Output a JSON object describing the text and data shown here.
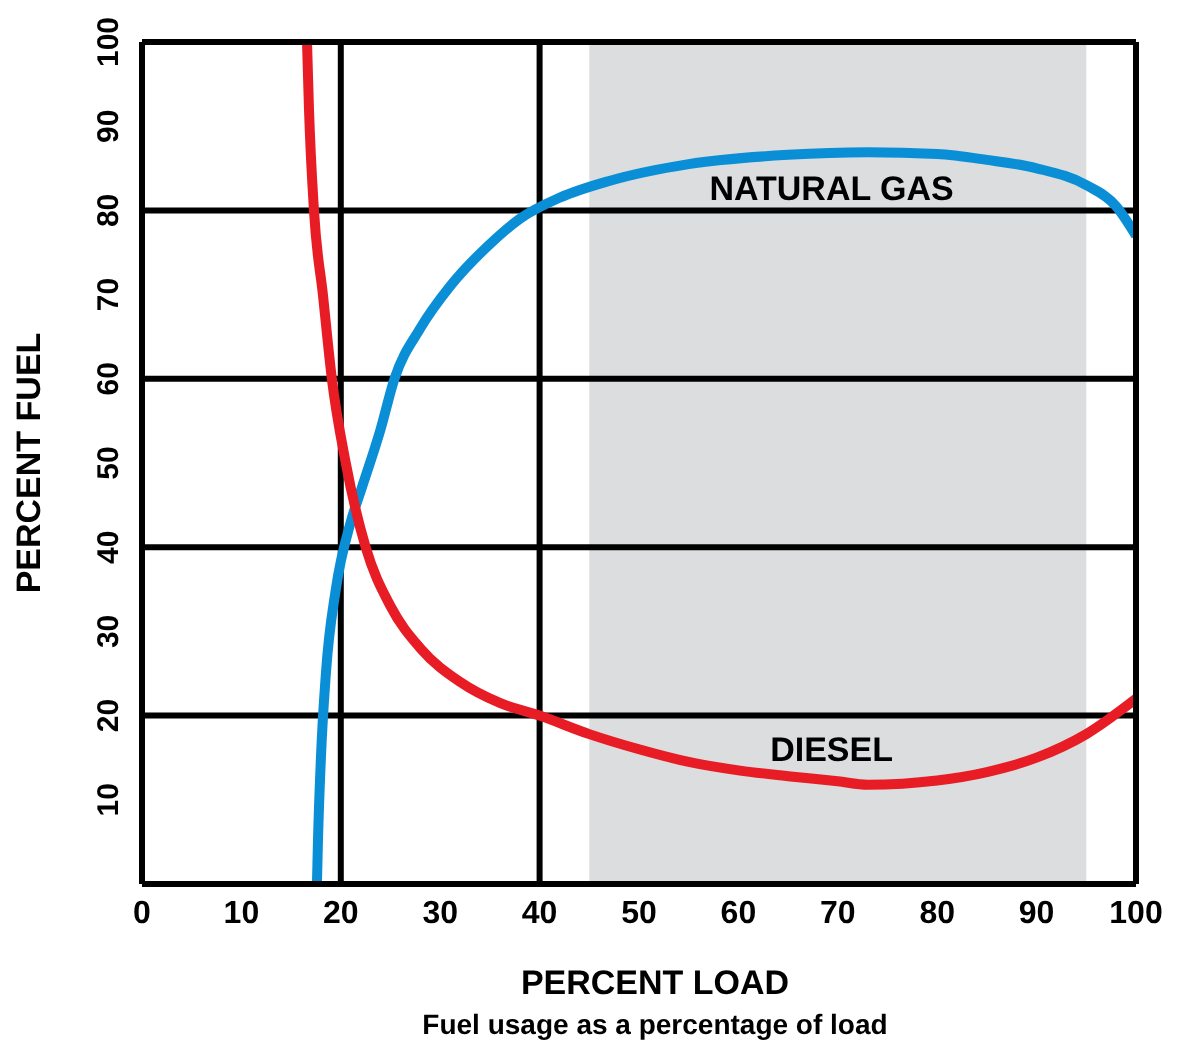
{
  "chart_data": {
    "type": "line",
    "xlabel": "PERCENT LOAD",
    "ylabel": "PERCENT FUEL",
    "annotations": [
      "Fuel usage as a percentage of load"
    ],
    "xlim": [
      0,
      100
    ],
    "xticks": [
      0,
      10,
      20,
      30,
      40,
      50,
      60,
      70,
      80,
      90,
      100
    ],
    "ylim": [
      0,
      100
    ],
    "yticks": [
      10,
      20,
      30,
      40,
      50,
      60,
      70,
      80,
      90,
      100
    ],
    "marker": "none",
    "line_style": "solid",
    "ref_lines": [
      {
        "axis": "x",
        "value": 20,
        "color": "#000000"
      },
      {
        "axis": "x",
        "value": 40,
        "color": "#000000"
      },
      {
        "axis": "y",
        "value": 20,
        "color": "#000000"
      },
      {
        "axis": "y",
        "value": 40,
        "color": "#000000"
      },
      {
        "axis": "y",
        "value": 60,
        "color": "#000000"
      },
      {
        "axis": "y",
        "value": 80,
        "color": "#000000"
      }
    ],
    "bands": [
      {
        "axis": "x",
        "from": 45,
        "to": 95,
        "color": "#dcdddf"
      }
    ],
    "series": [
      {
        "name": "NATURAL GAS",
        "color": "#0a8fd6",
        "x": [
          17.6,
          17.7,
          18,
          18.5,
          19.5,
          21,
          22.1,
          24,
          25.4,
          28,
          31,
          35,
          38,
          42,
          47,
          55,
          65,
          73,
          80,
          85,
          90,
          95,
          98,
          100
        ],
        "values": [
          0,
          5,
          15,
          25,
          35,
          43,
          47,
          54,
          60,
          66,
          71,
          76,
          79,
          81.5,
          83.5,
          85.5,
          86.6,
          86.9,
          86.7,
          86,
          85,
          83,
          80.5,
          77
        ]
      },
      {
        "name": "DIESEL",
        "color": "#e81c24",
        "x": [
          16.6,
          16.8,
          17.3,
          18.2,
          19.1,
          20.5,
          22.5,
          25,
          28,
          32,
          36,
          40,
          45,
          50,
          55,
          60,
          65,
          70,
          73,
          80,
          85,
          90,
          95,
          100
        ],
        "values": [
          100,
          92,
          80,
          70,
          60,
          50,
          40,
          33,
          28,
          24,
          21.5,
          20,
          17.8,
          16,
          14.5,
          13.5,
          12.8,
          12.2,
          11.8,
          12.3,
          13.3,
          15,
          17.8,
          22
        ]
      }
    ]
  }
}
